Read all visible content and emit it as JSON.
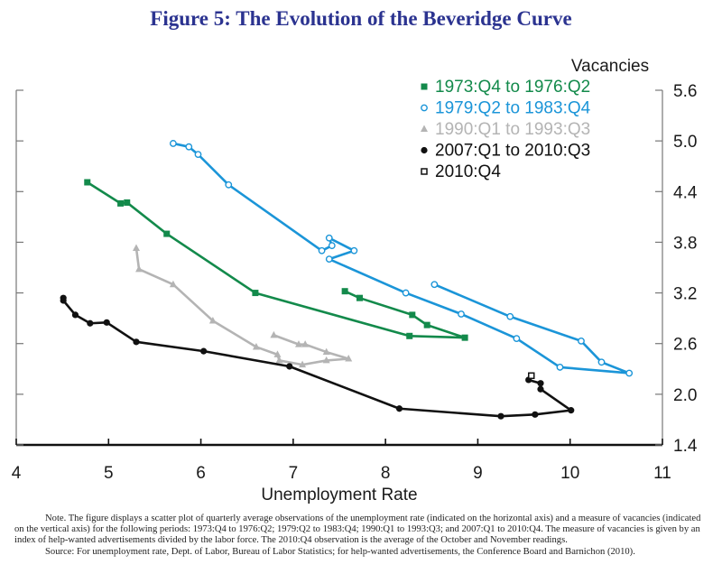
{
  "title": "Figure 5: The Evolution of the Beveridge Curve",
  "chart_data": {
    "type": "line",
    "title": "Figure 5: The Evolution of the Beveridge Curve",
    "xlabel": "Unemployment Rate",
    "ylabel": "Vacancies",
    "xlim": [
      4,
      11
    ],
    "ylim": [
      1.4,
      5.6
    ],
    "xticks": [
      "4",
      "5",
      "6",
      "7",
      "8",
      "9",
      "10",
      "11"
    ],
    "yticks": [
      "1.4",
      "2.0",
      "2.6",
      "3.2",
      "3.8",
      "4.4",
      "5.0",
      "5.6"
    ],
    "y_axis_side": "right",
    "grid": false,
    "legend_position": "top-right",
    "series": [
      {
        "name": "1973:Q4 to 1976:Q2",
        "color": "#138a4b",
        "marker": "square-filled",
        "x": [
          4.77,
          5.13,
          5.2,
          5.63,
          6.59,
          8.26,
          8.86,
          8.45,
          8.29,
          7.72,
          7.56
        ],
        "y": [
          4.51,
          4.26,
          4.27,
          3.9,
          3.2,
          2.69,
          2.67,
          2.82,
          2.94,
          3.14,
          3.22
        ]
      },
      {
        "name": "1979:Q2 to 1983:Q4",
        "color": "#1b95d8",
        "marker": "circle-open",
        "x": [
          5.7,
          5.87,
          5.97,
          6.3,
          7.31,
          7.42,
          7.39,
          7.66,
          7.39,
          8.22,
          8.82,
          9.42,
          9.89,
          10.64,
          10.34,
          10.12,
          9.35,
          8.53
        ],
        "y": [
          4.97,
          4.93,
          4.84,
          4.48,
          3.7,
          3.76,
          3.85,
          3.7,
          3.6,
          3.2,
          2.95,
          2.66,
          2.32,
          2.25,
          2.38,
          2.63,
          2.92,
          3.3
        ]
      },
      {
        "name": "1990:Q1 to 1993:Q3",
        "color": "#b4b4b4",
        "marker": "triangle-filled",
        "x": [
          5.3,
          5.33,
          5.7,
          6.13,
          6.6,
          6.83,
          6.85,
          7.1,
          7.36,
          7.6,
          7.36,
          7.13,
          7.06,
          6.79
        ],
        "y": [
          3.73,
          3.48,
          3.3,
          2.87,
          2.56,
          2.47,
          2.4,
          2.35,
          2.4,
          2.42,
          2.5,
          2.59,
          2.59,
          2.7
        ]
      },
      {
        "name": "2007:Q1 to 2010:Q3",
        "color": "#111111",
        "marker": "circle-filled",
        "x": [
          4.51,
          4.51,
          4.64,
          4.8,
          4.98,
          5.3,
          6.03,
          6.96,
          8.15,
          9.25,
          9.62,
          10.01,
          9.68,
          9.68,
          9.55
        ],
        "y": [
          3.14,
          3.11,
          2.94,
          2.84,
          2.85,
          2.62,
          2.51,
          2.33,
          1.83,
          1.74,
          1.76,
          1.81,
          2.06,
          2.13,
          2.17
        ]
      },
      {
        "name": "2010:Q4",
        "color": "#111111",
        "marker": "square-open",
        "x": [
          9.58
        ],
        "y": [
          2.22
        ]
      }
    ]
  },
  "note": {
    "text": "Note. The figure displays a scatter plot of quarterly average observations of the unemployment rate (indicated on the horizontal axis) and a measure of vacancies (indicated on the vertical axis) for the following periods: 1973:Q4 to 1976:Q2; 1979:Q2 to 1983:Q4; 1990:Q1 to 1993:Q3; and 2007:Q1 to 2010:Q4. The measure of vacancies is given by an index of help-wanted advertisements divided by the labor force. The 2010:Q4 observation is the average of the October and November readings.",
    "source": "Source: For unemployment rate, Dept. of Labor, Bureau of Labor Statistics; for help-wanted advertisements, the Conference Board and Barnichon (2010)."
  }
}
